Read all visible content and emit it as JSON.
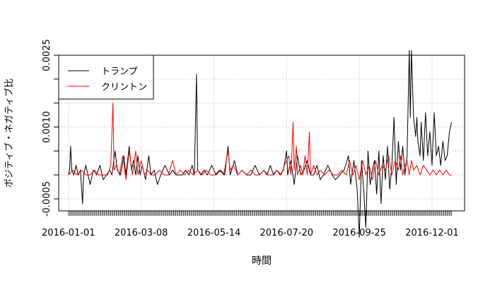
{
  "chart_data": {
    "type": "line",
    "title": "",
    "xlabel": "時間",
    "ylabel": "ポジティブ・ネガティブ比",
    "ylim": [
      -0.00075,
      0.0025
    ],
    "xlim": [
      "2015-12-23",
      "2016-12-31"
    ],
    "grid": true,
    "legend_position": "top-left",
    "yticks": [
      {
        "value": -0.0005,
        "label": "-0.0005"
      },
      {
        "value": 0.0,
        "label": ""
      },
      {
        "value": 0.0005,
        "label": ""
      },
      {
        "value": 0.001,
        "label": "0.0010"
      },
      {
        "value": 0.0015,
        "label": ""
      },
      {
        "value": 0.002,
        "label": ""
      },
      {
        "value": 0.0025,
        "label": "0.0025"
      }
    ],
    "xticks": [
      {
        "date": "2016-01-01",
        "label": "2016-01-01"
      },
      {
        "date": "2016-03-08",
        "label": "2016-03-08"
      },
      {
        "date": "2016-05-14",
        "label": "2016-05-14"
      },
      {
        "date": "2016-07-20",
        "label": "2016-07-20"
      },
      {
        "date": "2016-09-25",
        "label": "2016-09-25"
      },
      {
        "date": "2016-12-01",
        "label": "2016-12-01"
      }
    ],
    "series": [
      {
        "name": "トランプ",
        "color": "#000000",
        "points": [
          [
            "2016-01-01",
            0.0
          ],
          [
            "2016-01-02",
            0.0001
          ],
          [
            "2016-01-03",
            0.0006
          ],
          [
            "2016-01-04",
            0.0001
          ],
          [
            "2016-01-06",
            0.0
          ],
          [
            "2016-01-08",
            0.0002
          ],
          [
            "2016-01-10",
            0.0
          ],
          [
            "2016-01-12",
            0.0001
          ],
          [
            "2016-01-14",
            -0.0006
          ],
          [
            "2016-01-15",
            0.0
          ],
          [
            "2016-01-17",
            0.0002
          ],
          [
            "2016-01-19",
            0.0
          ],
          [
            "2016-01-21",
            -0.0002
          ],
          [
            "2016-01-24",
            0.0001
          ],
          [
            "2016-01-27",
            0.0
          ],
          [
            "2016-01-30",
            0.0002
          ],
          [
            "2016-02-02",
            -0.0001
          ],
          [
            "2016-02-05",
            0.0
          ],
          [
            "2016-02-08",
            0.0001
          ],
          [
            "2016-02-10",
            0.0
          ],
          [
            "2016-02-13",
            0.0005
          ],
          [
            "2016-02-15",
            0.0001
          ],
          [
            "2016-02-18",
            0.0
          ],
          [
            "2016-02-21",
            0.0004
          ],
          [
            "2016-02-23",
            0.0
          ],
          [
            "2016-02-26",
            0.0006
          ],
          [
            "2016-02-28",
            0.0001
          ],
          [
            "2016-03-01",
            0.0003
          ],
          [
            "2016-03-03",
            0.0
          ],
          [
            "2016-03-05",
            0.0004
          ],
          [
            "2016-03-07",
            0.0
          ],
          [
            "2016-03-09",
            0.0002
          ],
          [
            "2016-03-12",
            -0.0001
          ],
          [
            "2016-03-15",
            0.0004
          ],
          [
            "2016-03-17",
            0.0
          ],
          [
            "2016-03-20",
            0.0001
          ],
          [
            "2016-03-23",
            -0.0002
          ],
          [
            "2016-03-26",
            0.0
          ],
          [
            "2016-03-30",
            0.0002
          ],
          [
            "2016-04-03",
            0.0
          ],
          [
            "2016-04-06",
            0.0001
          ],
          [
            "2016-04-09",
            0.0
          ],
          [
            "2016-04-12",
            0.0
          ],
          [
            "2016-04-15",
            0.0
          ],
          [
            "2016-04-18",
            0.0001
          ],
          [
            "2016-04-21",
            0.0
          ],
          [
            "2016-04-24",
            0.0002
          ],
          [
            "2016-04-26",
            0.0
          ],
          [
            "2016-04-28",
            0.0021
          ],
          [
            "2016-04-29",
            0.0001
          ],
          [
            "2016-05-02",
            0.0
          ],
          [
            "2016-05-05",
            0.0001
          ],
          [
            "2016-05-08",
            0.0
          ],
          [
            "2016-05-12",
            0.0002
          ],
          [
            "2016-05-16",
            0.0
          ],
          [
            "2016-05-20",
            0.0001
          ],
          [
            "2016-05-24",
            0.0
          ],
          [
            "2016-05-27",
            0.0006
          ],
          [
            "2016-05-29",
            0.0
          ],
          [
            "2016-06-02",
            0.0003
          ],
          [
            "2016-06-05",
            0.0
          ],
          [
            "2016-06-09",
            0.0001
          ],
          [
            "2016-06-13",
            0.0
          ],
          [
            "2016-06-17",
            0.0
          ],
          [
            "2016-06-21",
            0.0002
          ],
          [
            "2016-06-25",
            0.0
          ],
          [
            "2016-06-29",
            0.0001
          ],
          [
            "2016-07-02",
            0.0
          ],
          [
            "2016-07-05",
            0.0002
          ],
          [
            "2016-07-08",
            0.0
          ],
          [
            "2016-07-11",
            0.0001
          ],
          [
            "2016-07-14",
            0.0
          ],
          [
            "2016-07-17",
            0.0001
          ],
          [
            "2016-07-20",
            0.0005
          ],
          [
            "2016-07-21",
            0.0
          ],
          [
            "2016-07-24",
            0.0003
          ],
          [
            "2016-07-27",
            -0.0002
          ],
          [
            "2016-07-30",
            0.0004
          ],
          [
            "2016-08-02",
            0.0
          ],
          [
            "2016-08-05",
            0.0001
          ],
          [
            "2016-08-08",
            0.0003
          ],
          [
            "2016-08-11",
            0.0
          ],
          [
            "2016-08-14",
            0.0
          ],
          [
            "2016-08-17",
            0.0002
          ],
          [
            "2016-08-20",
            -0.0001
          ],
          [
            "2016-08-23",
            0.0
          ],
          [
            "2016-08-27",
            0.0002
          ],
          [
            "2016-08-31",
            0.0
          ],
          [
            "2016-09-03",
            -0.0001
          ],
          [
            "2016-09-07",
            0.0
          ],
          [
            "2016-09-11",
            0.0001
          ],
          [
            "2016-09-15",
            0.0004
          ],
          [
            "2016-09-17",
            -0.0002
          ],
          [
            "2016-09-20",
            0.0003
          ],
          [
            "2016-09-23",
            -0.0003
          ],
          [
            "2016-09-25",
            -0.0013
          ],
          [
            "2016-09-27",
            0.0003
          ],
          [
            "2016-09-29",
            -0.0003
          ],
          [
            "2016-10-01",
            -0.0011
          ],
          [
            "2016-10-03",
            0.0005
          ],
          [
            "2016-10-05",
            -0.0002
          ],
          [
            "2016-10-07",
            0.0001
          ],
          [
            "2016-10-09",
            0.0003
          ],
          [
            "2016-10-11",
            -0.0004
          ],
          [
            "2016-10-13",
            0.0005
          ],
          [
            "2016-10-15",
            -0.0006
          ],
          [
            "2016-10-17",
            0.0004
          ],
          [
            "2016-10-19",
            -0.0001
          ],
          [
            "2016-10-21",
            0.0006
          ],
          [
            "2016-10-23",
            -0.0003
          ],
          [
            "2016-10-25",
            0.0002
          ],
          [
            "2016-10-27",
            0.0012
          ],
          [
            "2016-10-29",
            -0.0002
          ],
          [
            "2016-10-31",
            0.0007
          ],
          [
            "2016-11-02",
            0.0001
          ],
          [
            "2016-11-04",
            0.0006
          ],
          [
            "2016-11-06",
            0.0
          ],
          [
            "2016-11-08",
            0.0004
          ],
          [
            "2016-11-10",
            0.0026
          ],
          [
            "2016-11-11",
            0.0012
          ],
          [
            "2016-11-12",
            0.0026
          ],
          [
            "2016-11-14",
            0.0012
          ],
          [
            "2016-11-16",
            0.0008
          ],
          [
            "2016-11-17",
            0.0012
          ],
          [
            "2016-11-18",
            0.0007
          ],
          [
            "2016-11-20",
            0.0004
          ],
          [
            "2016-11-21",
            0.0011
          ],
          [
            "2016-11-23",
            0.0003
          ],
          [
            "2016-11-25",
            0.0013
          ],
          [
            "2016-11-27",
            0.0004
          ],
          [
            "2016-11-29",
            0.0009
          ],
          [
            "2016-12-01",
            0.0002
          ],
          [
            "2016-12-03",
            0.0013
          ],
          [
            "2016-12-05",
            0.0004
          ],
          [
            "2016-12-07",
            0.0006
          ],
          [
            "2016-12-09",
            0.0002
          ],
          [
            "2016-12-11",
            0.0007
          ],
          [
            "2016-12-13",
            0.0003
          ],
          [
            "2016-12-15",
            0.0004
          ],
          [
            "2016-12-17",
            0.0009
          ],
          [
            "2016-12-19",
            0.0011
          ]
        ]
      },
      {
        "name": "クリントン",
        "color": "#ff0000",
        "points": [
          [
            "2016-01-01",
            0.0
          ],
          [
            "2016-01-05",
            0.0001
          ],
          [
            "2016-01-09",
            0.0
          ],
          [
            "2016-01-13",
            0.0001
          ],
          [
            "2016-01-17",
            0.0
          ],
          [
            "2016-01-21",
            0.0
          ],
          [
            "2016-01-25",
            0.0001
          ],
          [
            "2016-01-29",
            0.0
          ],
          [
            "2016-02-02",
            0.0
          ],
          [
            "2016-02-06",
            0.0
          ],
          [
            "2016-02-09",
            0.0002
          ],
          [
            "2016-02-11",
            0.0015
          ],
          [
            "2016-02-12",
            0.0001
          ],
          [
            "2016-02-14",
            0.0002
          ],
          [
            "2016-02-17",
            0.0
          ],
          [
            "2016-02-20",
            0.0004
          ],
          [
            "2016-02-23",
            -0.0001
          ],
          [
            "2016-02-26",
            0.0005
          ],
          [
            "2016-02-29",
            0.0
          ],
          [
            "2016-03-03",
            0.0005
          ],
          [
            "2016-03-05",
            0.0
          ],
          [
            "2016-03-08",
            0.0003
          ],
          [
            "2016-03-11",
            0.0
          ],
          [
            "2016-03-14",
            0.0001
          ],
          [
            "2016-03-17",
            0.0
          ],
          [
            "2016-03-21",
            0.0
          ],
          [
            "2016-03-25",
            0.0001
          ],
          [
            "2016-03-29",
            0.0
          ],
          [
            "2016-04-02",
            0.0
          ],
          [
            "2016-04-06",
            0.0003
          ],
          [
            "2016-04-09",
            0.0
          ],
          [
            "2016-04-13",
            0.0001
          ],
          [
            "2016-04-17",
            0.0
          ],
          [
            "2016-04-21",
            0.0001
          ],
          [
            "2016-04-25",
            0.0
          ],
          [
            "2016-04-29",
            0.0001
          ],
          [
            "2016-05-03",
            0.0
          ],
          [
            "2016-05-07",
            0.0001
          ],
          [
            "2016-05-11",
            0.0
          ],
          [
            "2016-05-15",
            0.0
          ],
          [
            "2016-05-19",
            0.0001
          ],
          [
            "2016-05-23",
            0.0
          ],
          [
            "2016-05-27",
            0.0005
          ],
          [
            "2016-05-29",
            0.0001
          ],
          [
            "2016-06-01",
            0.0002
          ],
          [
            "2016-06-05",
            0.0
          ],
          [
            "2016-06-09",
            0.0001
          ],
          [
            "2016-06-13",
            0.0
          ],
          [
            "2016-06-17",
            0.0001
          ],
          [
            "2016-06-21",
            0.0
          ],
          [
            "2016-06-25",
            0.0
          ],
          [
            "2016-06-29",
            0.0001
          ],
          [
            "2016-07-03",
            0.0
          ],
          [
            "2016-07-07",
            0.0
          ],
          [
            "2016-07-11",
            0.0001
          ],
          [
            "2016-07-15",
            0.0
          ],
          [
            "2016-07-18",
            0.0002
          ],
          [
            "2016-07-22",
            0.0004
          ],
          [
            "2016-07-24",
            0.0
          ],
          [
            "2016-07-26",
            0.0011
          ],
          [
            "2016-07-27",
            0.0001
          ],
          [
            "2016-07-29",
            0.0006
          ],
          [
            "2016-07-30",
            0.0
          ],
          [
            "2016-08-02",
            0.0002
          ],
          [
            "2016-08-04",
            0.0
          ],
          [
            "2016-08-06",
            0.0004
          ],
          [
            "2016-08-08",
            0.0
          ],
          [
            "2016-08-10",
            0.0009
          ],
          [
            "2016-08-11",
            0.0
          ],
          [
            "2016-08-14",
            0.0002
          ],
          [
            "2016-08-17",
            0.0
          ],
          [
            "2016-08-20",
            0.0001
          ],
          [
            "2016-08-24",
            0.0
          ],
          [
            "2016-08-28",
            0.0001
          ],
          [
            "2016-09-01",
            0.0
          ],
          [
            "2016-09-05",
            0.0
          ],
          [
            "2016-09-09",
            0.0001
          ],
          [
            "2016-09-13",
            0.0
          ],
          [
            "2016-09-16",
            0.0003
          ],
          [
            "2016-09-19",
            0.0
          ],
          [
            "2016-09-22",
            0.0002
          ],
          [
            "2016-09-25",
            -0.0001
          ],
          [
            "2016-09-28",
            0.0003
          ],
          [
            "2016-10-01",
            0.0
          ],
          [
            "2016-10-04",
            0.0002
          ],
          [
            "2016-10-07",
            -0.0001
          ],
          [
            "2016-10-10",
            0.0003
          ],
          [
            "2016-10-13",
            0.0
          ],
          [
            "2016-10-16",
            0.0002
          ],
          [
            "2016-10-19",
            0.0001
          ],
          [
            "2016-10-22",
            0.0004
          ],
          [
            "2016-10-25",
            0.0
          ],
          [
            "2016-10-28",
            0.0003
          ],
          [
            "2016-10-31",
            0.0001
          ],
          [
            "2016-11-02",
            0.0004
          ],
          [
            "2016-11-04",
            0.0
          ],
          [
            "2016-11-06",
            0.0002
          ],
          [
            "2016-11-08",
            0.0003
          ],
          [
            "2016-11-10",
            0.0
          ],
          [
            "2016-11-12",
            0.0003
          ],
          [
            "2016-11-14",
            0.0001
          ],
          [
            "2016-11-17",
            0.0002
          ],
          [
            "2016-11-20",
            0.0
          ],
          [
            "2016-11-23",
            0.0002
          ],
          [
            "2016-11-26",
            0.0001
          ],
          [
            "2016-11-29",
            0.0
          ],
          [
            "2016-12-02",
            0.0001
          ],
          [
            "2016-12-05",
            0.0
          ],
          [
            "2016-12-08",
            0.0001
          ],
          [
            "2016-12-11",
            0.0
          ],
          [
            "2016-12-14",
            0.0001
          ],
          [
            "2016-12-17",
            0.0
          ],
          [
            "2016-12-19",
            0.0
          ]
        ]
      }
    ]
  }
}
